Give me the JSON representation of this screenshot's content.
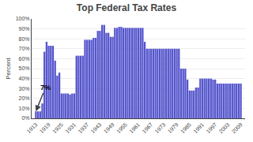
{
  "chart_data": {
    "type": "bar",
    "title": "Top Federal Tax Rates",
    "x": [
      1913,
      1914,
      1915,
      1916,
      1917,
      1918,
      1919,
      1920,
      1921,
      1922,
      1923,
      1924,
      1925,
      1926,
      1927,
      1928,
      1929,
      1930,
      1931,
      1932,
      1933,
      1934,
      1935,
      1936,
      1937,
      1938,
      1939,
      1940,
      1941,
      1942,
      1943,
      1944,
      1945,
      1946,
      1947,
      1948,
      1949,
      1950,
      1951,
      1952,
      1953,
      1954,
      1955,
      1956,
      1957,
      1958,
      1959,
      1960,
      1961,
      1962,
      1963,
      1964,
      1965,
      1966,
      1967,
      1968,
      1969,
      1970,
      1971,
      1972,
      1973,
      1974,
      1975,
      1976,
      1977,
      1978,
      1979,
      1980,
      1981,
      1982,
      1983,
      1984,
      1985,
      1986,
      1987,
      1988,
      1989,
      1990,
      1991,
      1992,
      1993,
      1994,
      1995,
      1996,
      1997,
      1998,
      1999,
      2000,
      2001,
      2002,
      2003,
      2004,
      2005,
      2006,
      2007,
      2008,
      2009
    ],
    "values": [
      7,
      7,
      7,
      15,
      67,
      77,
      73,
      73,
      73,
      58,
      43,
      46,
      25,
      25,
      25,
      25,
      24,
      25,
      25,
      63,
      63,
      63,
      63,
      79,
      79,
      79,
      79,
      81,
      81,
      88,
      88,
      94,
      94,
      86,
      86,
      82,
      82,
      91,
      91,
      92,
      92,
      91,
      91,
      91,
      91,
      91,
      91,
      91,
      91,
      91,
      91,
      77,
      70,
      70,
      70,
      70,
      70,
      70,
      70,
      70,
      70,
      70,
      70,
      70,
      70,
      70,
      70,
      70,
      50,
      50,
      50,
      39,
      28,
      28,
      28,
      31,
      31,
      40,
      40,
      40,
      40,
      40,
      40,
      39,
      39,
      35,
      35,
      35,
      35,
      35,
      35,
      35,
      35,
      35,
      35,
      35,
      35
    ],
    "color": "#5555cc",
    "ylabel": "Percent",
    "annotation": "7%",
    "xlim": [
      1911,
      2011
    ],
    "xticks": [
      1913,
      1919,
      1925,
      1931,
      1937,
      1943,
      1949,
      1955,
      1961,
      1967,
      1973,
      1979,
      1985,
      1991,
      1997,
      2003,
      2009
    ],
    "ylim": [
      0,
      100
    ],
    "yticks": [
      {
        "value": 0,
        "label": "0%"
      },
      {
        "value": 10,
        "label": "10%"
      },
      {
        "value": 20,
        "label": "20%"
      },
      {
        "value": 30,
        "label": "30%"
      },
      {
        "value": 40,
        "label": "40%"
      },
      {
        "value": 50,
        "label": "50%"
      },
      {
        "value": 60,
        "label": "60%"
      },
      {
        "value": 70,
        "label": "70%"
      },
      {
        "value": 80,
        "label": "80%"
      },
      {
        "value": 90,
        "label": "90%"
      },
      {
        "value": 100,
        "label": "100%"
      }
    ],
    "grid": true
  }
}
